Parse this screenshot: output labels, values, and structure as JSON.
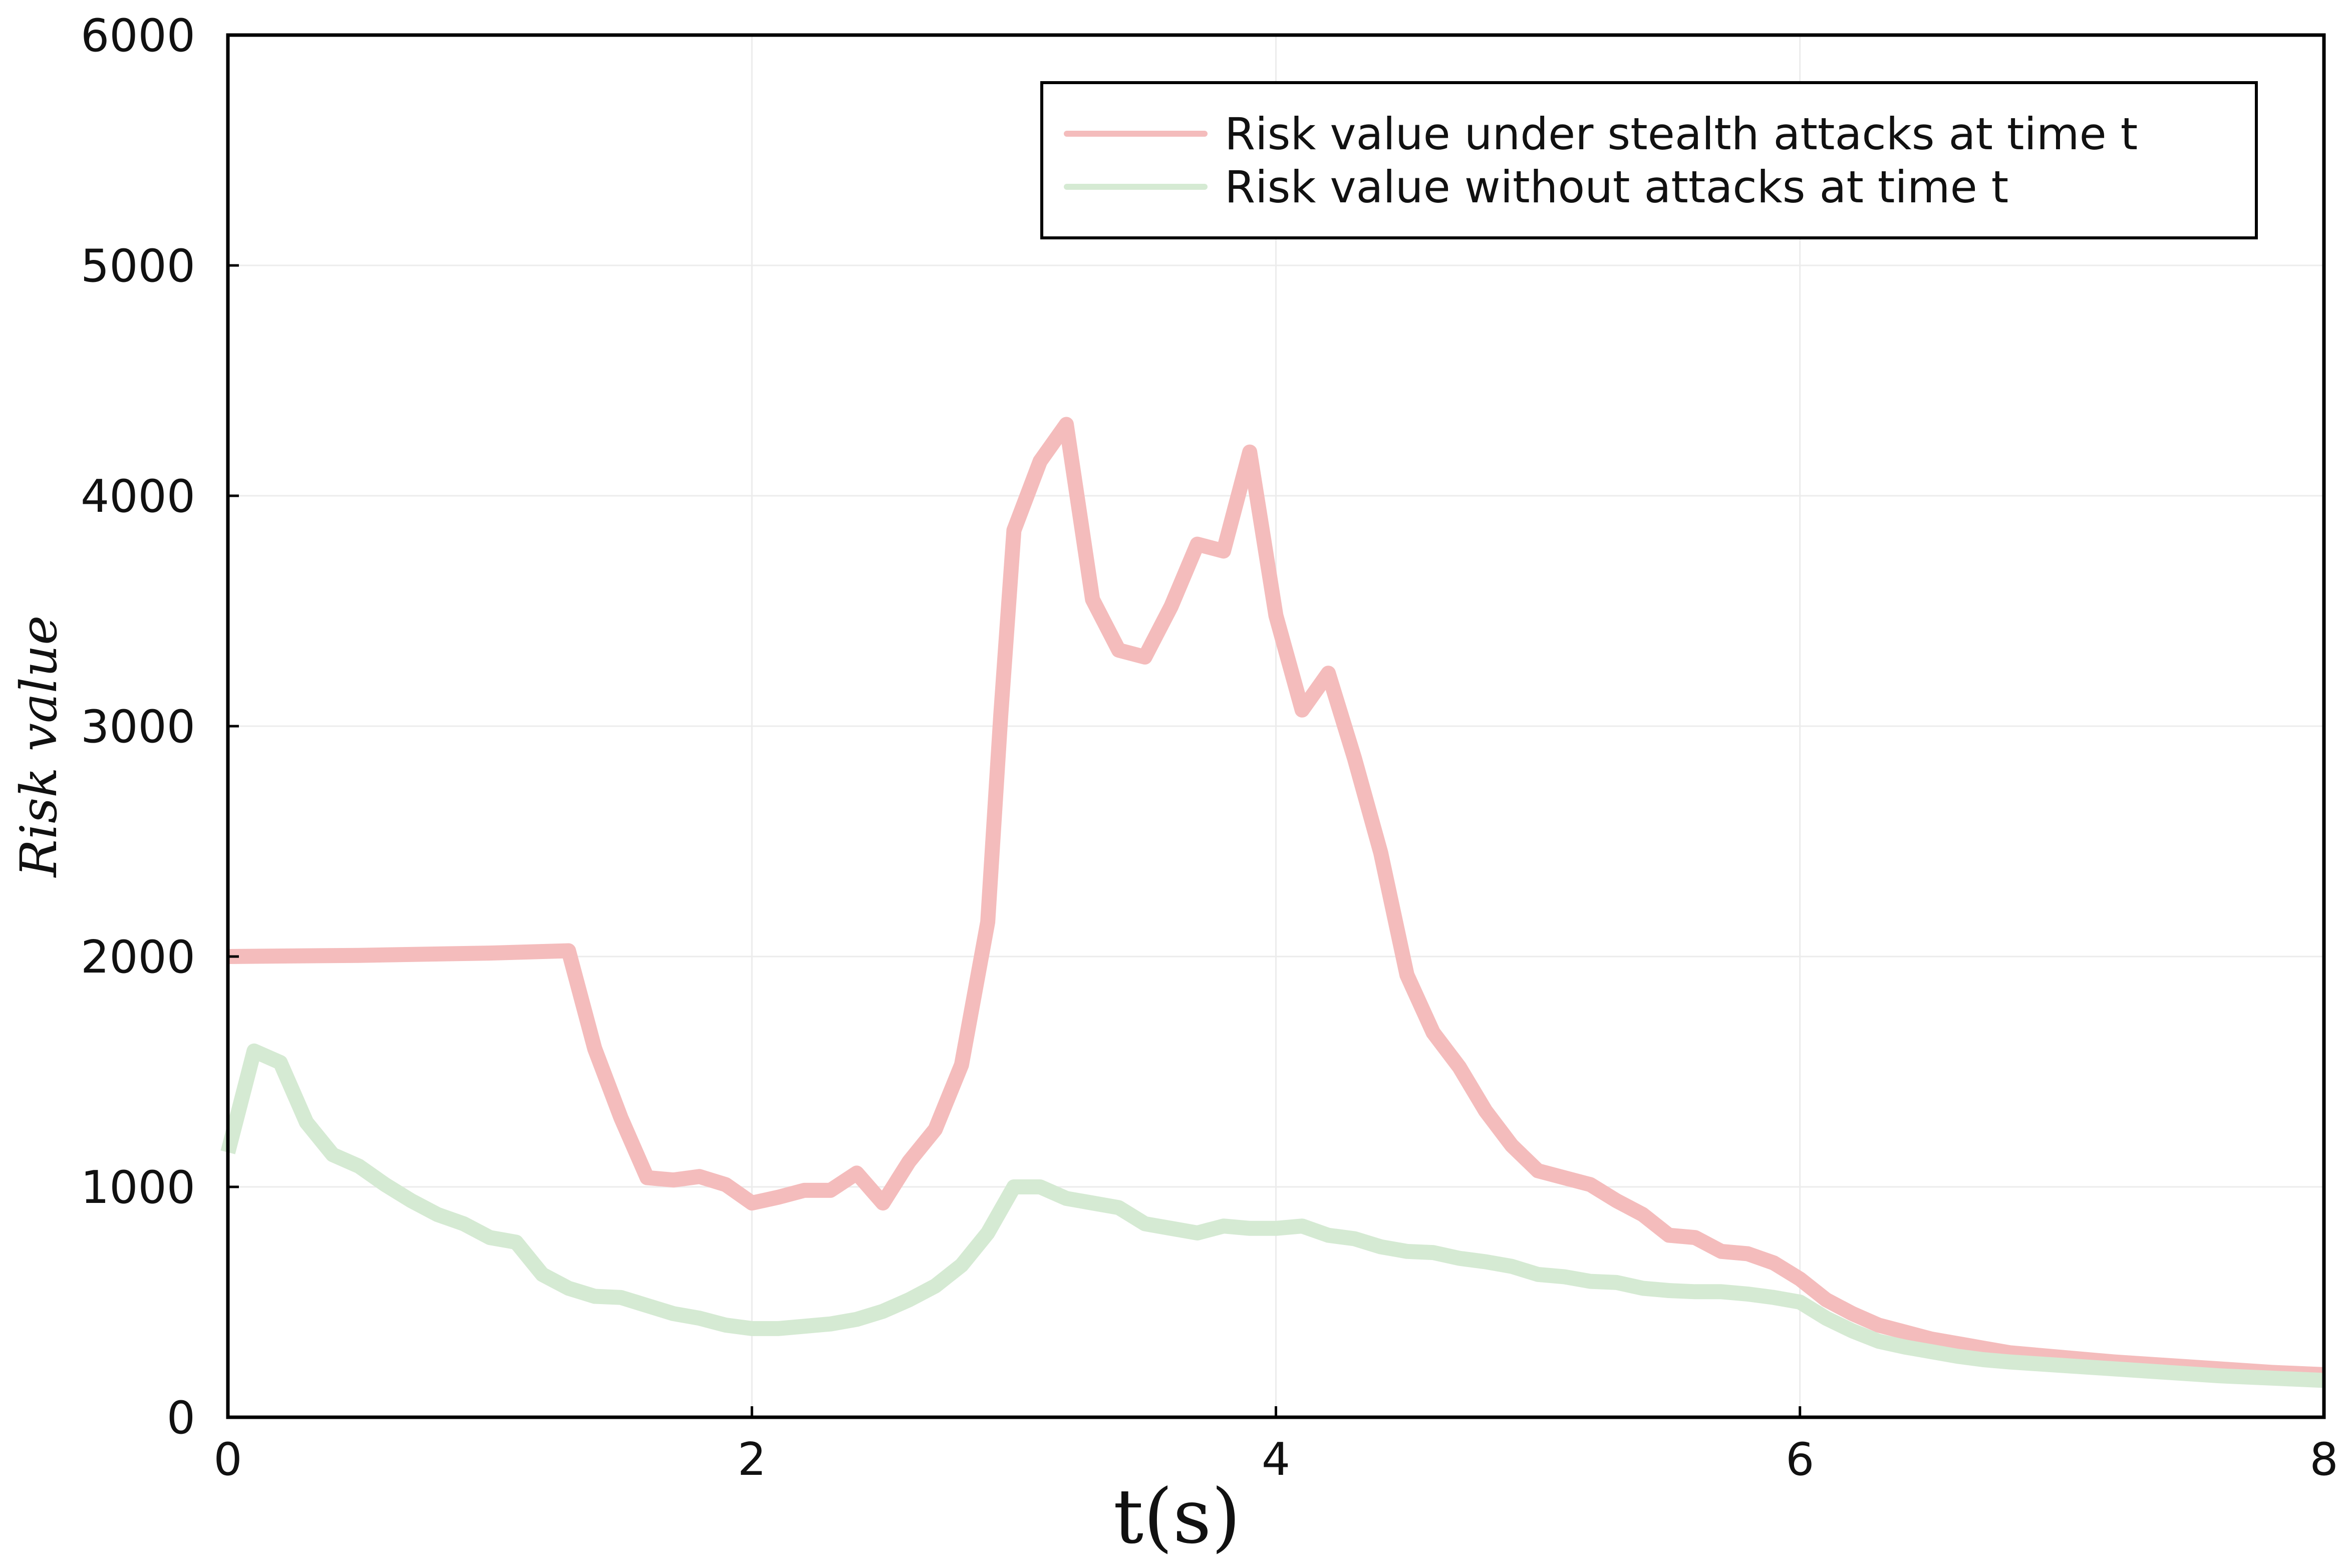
{
  "chart_data": {
    "type": "line",
    "xlabel": "t(s)",
    "ylabel": "Risk value",
    "xlim": [
      0,
      8
    ],
    "ylim": [
      0,
      6000
    ],
    "xticks": [
      0,
      2,
      4,
      6,
      8
    ],
    "yticks": [
      0,
      1000,
      2000,
      3000,
      4000,
      5000,
      6000
    ],
    "grid": true,
    "legend_position": "top-right",
    "series": [
      {
        "name": "Risk value under stealth attacks at time t",
        "color": "#f4bcbc",
        "points": [
          [
            0,
            2000
          ],
          [
            0.5,
            2005
          ],
          [
            1.0,
            2015
          ],
          [
            1.3,
            2025
          ],
          [
            1.4,
            1600
          ],
          [
            1.5,
            1300
          ],
          [
            1.6,
            1040
          ],
          [
            1.7,
            1030
          ],
          [
            1.8,
            1045
          ],
          [
            1.9,
            1010
          ],
          [
            2.0,
            930
          ],
          [
            2.1,
            955
          ],
          [
            2.2,
            985
          ],
          [
            2.3,
            985
          ],
          [
            2.4,
            1060
          ],
          [
            2.5,
            930
          ],
          [
            2.6,
            1110
          ],
          [
            2.7,
            1250
          ],
          [
            2.8,
            1530
          ],
          [
            2.9,
            2150
          ],
          [
            2.95,
            3050
          ],
          [
            3.0,
            3850
          ],
          [
            3.1,
            4150
          ],
          [
            3.2,
            4310
          ],
          [
            3.3,
            3550
          ],
          [
            3.4,
            3330
          ],
          [
            3.5,
            3300
          ],
          [
            3.6,
            3520
          ],
          [
            3.7,
            3790
          ],
          [
            3.8,
            3760
          ],
          [
            3.9,
            4190
          ],
          [
            4.0,
            3480
          ],
          [
            4.1,
            3070
          ],
          [
            4.2,
            3230
          ],
          [
            4.3,
            2860
          ],
          [
            4.4,
            2450
          ],
          [
            4.5,
            1920
          ],
          [
            4.6,
            1670
          ],
          [
            4.7,
            1520
          ],
          [
            4.8,
            1330
          ],
          [
            4.9,
            1180
          ],
          [
            5.0,
            1070
          ],
          [
            5.1,
            1040
          ],
          [
            5.2,
            1010
          ],
          [
            5.3,
            940
          ],
          [
            5.4,
            880
          ],
          [
            5.5,
            790
          ],
          [
            5.6,
            780
          ],
          [
            5.7,
            720
          ],
          [
            5.8,
            710
          ],
          [
            5.9,
            670
          ],
          [
            6.0,
            600
          ],
          [
            6.1,
            510
          ],
          [
            6.2,
            450
          ],
          [
            6.3,
            400
          ],
          [
            6.4,
            370
          ],
          [
            6.5,
            340
          ],
          [
            6.6,
            320
          ],
          [
            6.7,
            300
          ],
          [
            6.8,
            280
          ],
          [
            7.0,
            260
          ],
          [
            7.2,
            240
          ],
          [
            7.4,
            225
          ],
          [
            7.6,
            210
          ],
          [
            7.8,
            195
          ],
          [
            8.0,
            185
          ]
        ]
      },
      {
        "name": "Risk value without attacks at time t",
        "color": "#d5ead3",
        "points": [
          [
            0,
            1150
          ],
          [
            0.1,
            1590
          ],
          [
            0.2,
            1540
          ],
          [
            0.3,
            1280
          ],
          [
            0.4,
            1140
          ],
          [
            0.5,
            1090
          ],
          [
            0.6,
            1010
          ],
          [
            0.7,
            940
          ],
          [
            0.8,
            880
          ],
          [
            0.9,
            840
          ],
          [
            1.0,
            780
          ],
          [
            1.1,
            760
          ],
          [
            1.2,
            620
          ],
          [
            1.3,
            560
          ],
          [
            1.4,
            525
          ],
          [
            1.5,
            520
          ],
          [
            1.6,
            485
          ],
          [
            1.7,
            450
          ],
          [
            1.8,
            430
          ],
          [
            1.9,
            400
          ],
          [
            2.0,
            385
          ],
          [
            2.1,
            385
          ],
          [
            2.2,
            395
          ],
          [
            2.3,
            405
          ],
          [
            2.4,
            425
          ],
          [
            2.5,
            460
          ],
          [
            2.6,
            510
          ],
          [
            2.7,
            570
          ],
          [
            2.8,
            660
          ],
          [
            2.9,
            800
          ],
          [
            3.0,
            1000
          ],
          [
            3.1,
            1000
          ],
          [
            3.2,
            950
          ],
          [
            3.3,
            930
          ],
          [
            3.4,
            910
          ],
          [
            3.5,
            840
          ],
          [
            3.6,
            820
          ],
          [
            3.7,
            800
          ],
          [
            3.8,
            830
          ],
          [
            3.9,
            820
          ],
          [
            4.0,
            820
          ],
          [
            4.1,
            830
          ],
          [
            4.2,
            790
          ],
          [
            4.3,
            775
          ],
          [
            4.4,
            740
          ],
          [
            4.5,
            720
          ],
          [
            4.6,
            715
          ],
          [
            4.7,
            690
          ],
          [
            4.8,
            675
          ],
          [
            4.9,
            655
          ],
          [
            5.0,
            620
          ],
          [
            5.1,
            610
          ],
          [
            5.2,
            590
          ],
          [
            5.3,
            585
          ],
          [
            5.4,
            560
          ],
          [
            5.5,
            550
          ],
          [
            5.6,
            545
          ],
          [
            5.7,
            545
          ],
          [
            5.8,
            535
          ],
          [
            5.9,
            520
          ],
          [
            6.0,
            500
          ],
          [
            6.1,
            430
          ],
          [
            6.2,
            375
          ],
          [
            6.3,
            330
          ],
          [
            6.4,
            305
          ],
          [
            6.5,
            285
          ],
          [
            6.6,
            265
          ],
          [
            6.7,
            250
          ],
          [
            6.8,
            240
          ],
          [
            7.0,
            225
          ],
          [
            7.2,
            210
          ],
          [
            7.4,
            195
          ],
          [
            7.6,
            180
          ],
          [
            7.8,
            170
          ],
          [
            8.0,
            160
          ]
        ]
      }
    ]
  }
}
